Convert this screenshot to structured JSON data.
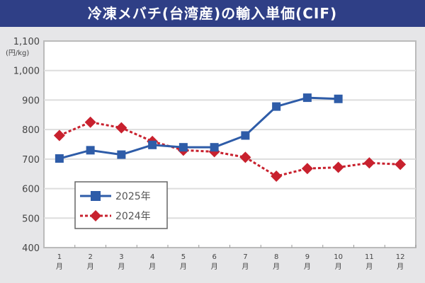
{
  "title": "冷凍メバチ(台湾産)の輸入単価(CIF)",
  "chart_data": {
    "type": "line",
    "title": "冷凍メバチ(台湾産)の輸入単価(CIF)",
    "ylabel": "(円/kg)",
    "xlabel": "",
    "ylim": [
      400,
      1100
    ],
    "yticks": [
      "400",
      "500",
      "600",
      "700",
      "800",
      "900",
      "1,000",
      "1,100"
    ],
    "categories": [
      [
        "1",
        "月"
      ],
      [
        "2",
        "月"
      ],
      [
        "3",
        "月"
      ],
      [
        "4",
        "月"
      ],
      [
        "5",
        "月"
      ],
      [
        "6",
        "月"
      ],
      [
        "7",
        "月"
      ],
      [
        "8",
        "月"
      ],
      [
        "9",
        "月"
      ],
      [
        "10",
        "月"
      ],
      [
        "11",
        "月"
      ],
      [
        "12",
        "月"
      ]
    ],
    "grid": true,
    "legend_position": "bottom-left",
    "series": [
      {
        "name": "2025年",
        "color": "#2e5ca8",
        "marker": "square",
        "line": "solid",
        "values": [
          702,
          730,
          715,
          748,
          740,
          740,
          780,
          878,
          908,
          904,
          null,
          null
        ]
      },
      {
        "name": "2024年",
        "color": "#c8212e",
        "marker": "diamond",
        "line": "dotted",
        "values": [
          780,
          825,
          806,
          760,
          730,
          725,
          706,
          642,
          668,
          672,
          687,
          682
        ]
      }
    ]
  }
}
